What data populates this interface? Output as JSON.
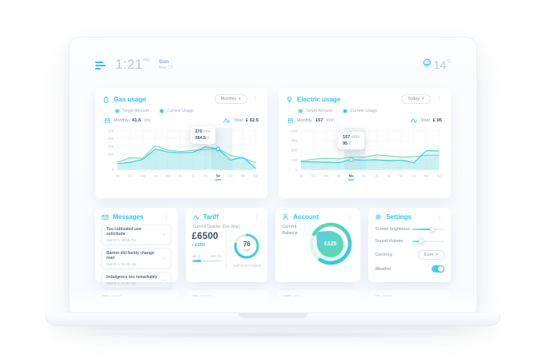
{
  "header": {
    "time": "1:21",
    "meridiem": "PM",
    "day": "Sun",
    "date": "Mar 13",
    "temperature": "14",
    "temperature_unit": "°C"
  },
  "gas": {
    "title": "Gas usage",
    "period": "Monthly",
    "legend_target": "Target Amount",
    "legend_current": "Current Usage",
    "summary_label": "Monthly",
    "summary_value": "41.6",
    "summary_unit": "litre",
    "total_label": "Total",
    "total_value": "£ 62.5",
    "tooltip_value": "270",
    "tooltip_unit": "litre",
    "tooltip_cost": "364.5",
    "tooltip_cost_unit": "£"
  },
  "electric": {
    "title": "Electric usage",
    "period": "Today",
    "legend_target": "Target Amount",
    "legend_current": "Current Usage",
    "summary_label": "Monthly",
    "summary_value": "157",
    "summary_unit": "kWh",
    "total_label": "Total",
    "total_value": "£ 95",
    "tooltip_value": "157",
    "tooltip_unit": "kWh",
    "tooltip_cost": "95",
    "tooltip_cost_unit": "£"
  },
  "messages": {
    "title": "Messages",
    "items": [
      {
        "text": "Too cultivated use solicitude",
        "time": "March 5, 08.05 PM"
      },
      {
        "text": "Barton did feebly change man",
        "time": "March 4, 02.30 AM"
      },
      {
        "text": "Indulgence ten remarkably",
        "time": "March 2, 11.20 AM"
      }
    ]
  },
  "tariff": {
    "title": "Tariff",
    "subtitle": "Current Quarter (Dec-Mar)",
    "amount": "£6500",
    "delta": "£250",
    "range_start": "Jan 1",
    "range_end": "Mar 31",
    "progress_percent": 32,
    "days_value": "76",
    "days_unit": "days",
    "ring_percent": 78,
    "footnote": "Until End of March"
  },
  "account": {
    "title": "Account",
    "balance_label": "Current Balance",
    "balance_value": "£125",
    "gauge_percent": 76
  },
  "settings": {
    "title": "Settings",
    "brightness_label": "Screen brightness",
    "brightness_percent": 62,
    "volume_label": "Sound Volume",
    "volume_percent": 28,
    "currency_label": "Currency",
    "currency_value": "Euro",
    "weather_label": "Weather",
    "weather_on": true
  },
  "icons": {
    "kebab": "⋮",
    "caret_down": "▾",
    "arrow_right": "→",
    "delta_up": "›"
  },
  "colors": {
    "accent_cyan": "#2bc4f3",
    "target_green": "#76d9b1",
    "navy_text": "#3f4e6b",
    "muted_text": "#a9b6c8"
  },
  "chart_data": [
    {
      "type": "area",
      "title": "Gas usage",
      "legend": [
        "Target Amount",
        "Current Usage"
      ],
      "legend_position": "top-left",
      "grid": true,
      "categories": [
        "Ja",
        "Fe",
        "Ma",
        "Ap",
        "Ma",
        "Ju",
        "Jl",
        "Au",
        "Se",
        "Oc",
        "No",
        "De"
      ],
      "series": [
        {
          "name": "Target Amount",
          "color": "#76d9b1",
          "values": [
            100,
            155,
            150,
            310,
            255,
            235,
            250,
            260,
            270,
            185,
            150,
            95
          ]
        },
        {
          "name": "Current Usage",
          "color": "#2bc4f3",
          "values": [
            80,
            95,
            135,
            265,
            230,
            220,
            225,
            295,
            270,
            125,
            160,
            20
          ]
        }
      ],
      "xlabel": "",
      "ylabel": "",
      "y_ticks": [
        500,
        400,
        300,
        200,
        0
      ],
      "ylim": [
        0,
        500
      ],
      "selected_index": 8,
      "selected_label": "Se",
      "band": [
        7.45,
        9.15
      ],
      "marker": {
        "index": 8,
        "value": 270,
        "series": "Current Usage",
        "color": "#2bc4f3"
      },
      "tooltip": [
        "270 litre",
        "364.5 £"
      ]
    },
    {
      "type": "area",
      "title": "Electric usage",
      "legend": [
        "Target Amount",
        "Current Usage"
      ],
      "legend_position": "top-left",
      "grid": true,
      "categories": [
        "Ja",
        "Fe",
        "Ma",
        "Ap",
        "Ma",
        "Ju",
        "Jl",
        "Au",
        "Se",
        "Oc",
        "No",
        "De"
      ],
      "series": [
        {
          "name": "Target Amount",
          "color": "#76d9b1",
          "values": [
            135,
            165,
            175,
            170,
            200,
            195,
            230,
            215,
            195,
            205,
            225,
            225
          ]
        },
        {
          "name": "Current Usage",
          "color": "#2bc4f3",
          "values": [
            125,
            122,
            118,
            110,
            157,
            150,
            155,
            140,
            150,
            110,
            295,
            290
          ]
        }
      ],
      "xlabel": "",
      "ylabel": "",
      "y_ticks": [
        600,
        450,
        300,
        150,
        0
      ],
      "ylim": [
        0,
        600
      ],
      "selected_index": 4,
      "selected_label": "Ma",
      "band": [
        3.45,
        5.15
      ],
      "marker": {
        "index": 4,
        "value": 157,
        "series": "Current Usage",
        "color": "#76d9b1"
      },
      "tooltip": [
        "157 kWh",
        "95 £"
      ]
    }
  ]
}
